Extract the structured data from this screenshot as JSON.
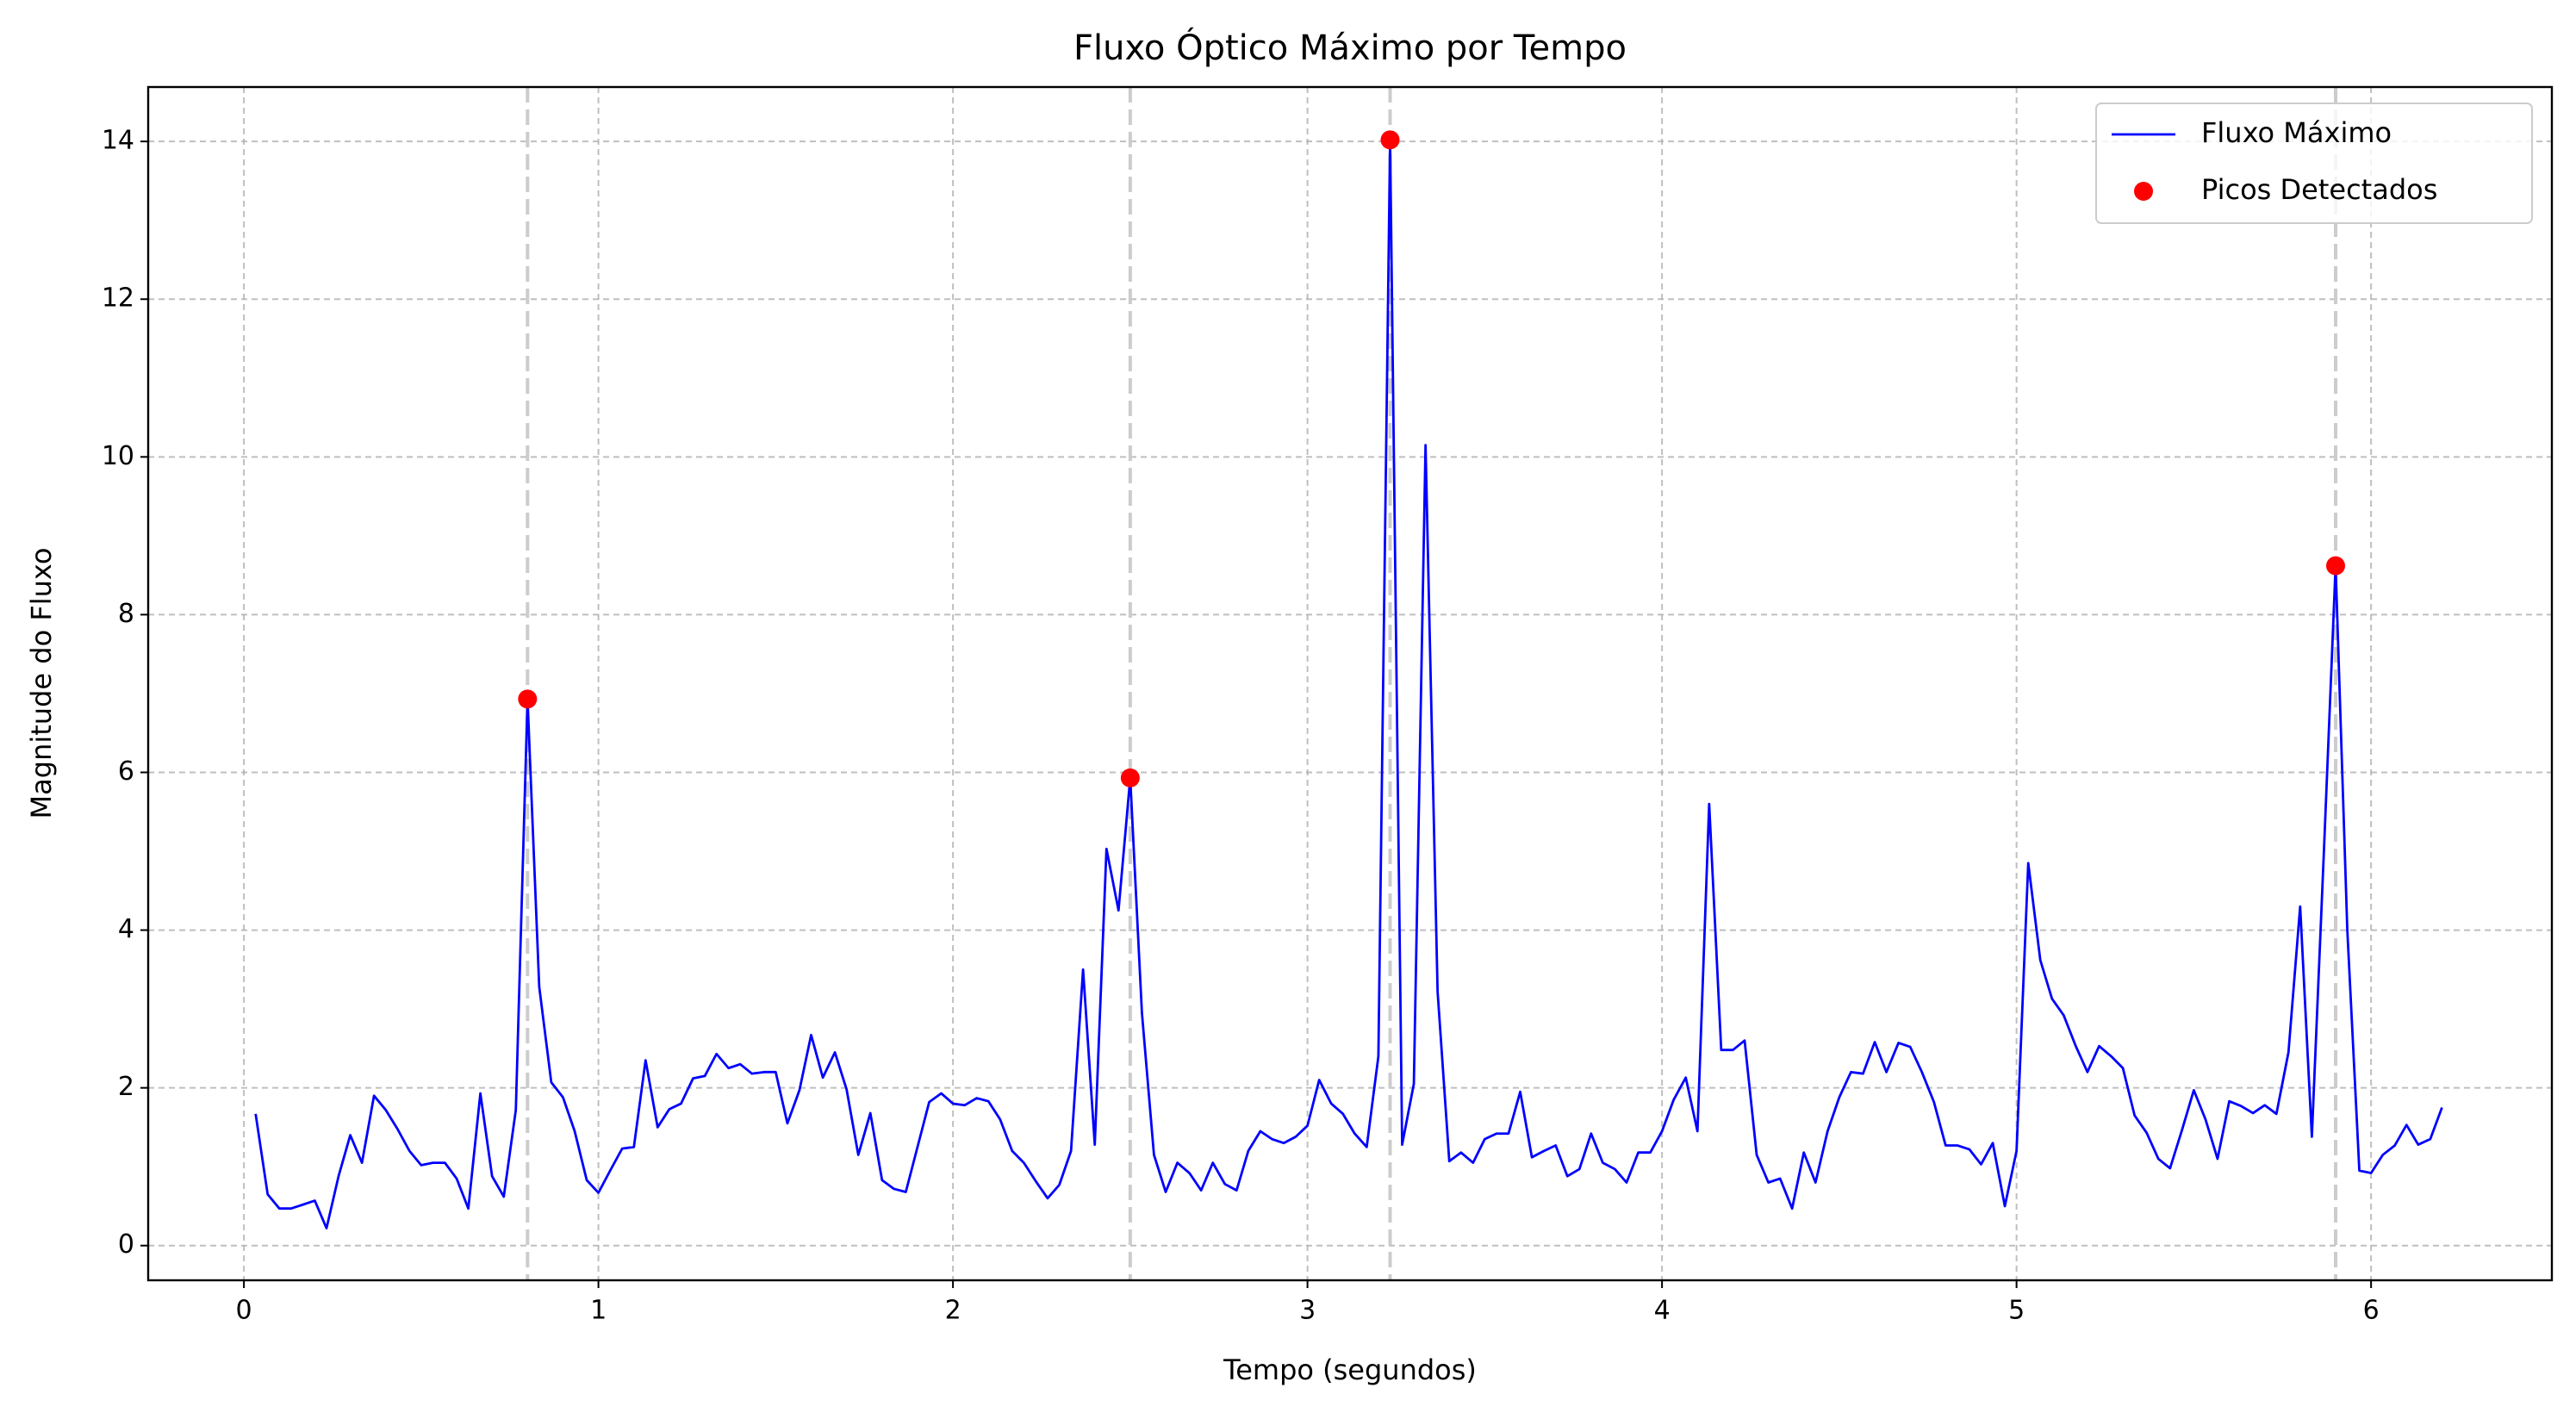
{
  "chart_data": {
    "type": "line",
    "title": "Fluxo Óptico Máximo por Tempo",
    "x_label": "Tempo (segundos)",
    "y_label": "Magnitude do Fluxo",
    "xlim": [
      -0.27,
      6.51
    ],
    "ylim": [
      -0.44,
      14.69
    ],
    "xticks": [
      0,
      1,
      2,
      3,
      4,
      5,
      6
    ],
    "yticks": [
      0,
      2,
      4,
      6,
      8,
      10,
      12,
      14
    ],
    "grid": true,
    "legend": "upper right",
    "x": [
      0.033,
      0.067,
      0.1,
      0.133,
      0.167,
      0.2,
      0.233,
      0.267,
      0.3,
      0.333,
      0.367,
      0.4,
      0.433,
      0.467,
      0.5,
      0.533,
      0.567,
      0.6,
      0.633,
      0.667,
      0.7,
      0.733,
      0.767,
      0.8,
      0.833,
      0.867,
      0.9,
      0.933,
      0.967,
      1,
      1.033,
      1.067,
      1.1,
      1.133,
      1.167,
      1.2,
      1.233,
      1.267,
      1.3,
      1.333,
      1.367,
      1.4,
      1.433,
      1.467,
      1.5,
      1.533,
      1.567,
      1.6,
      1.633,
      1.667,
      1.7,
      1.733,
      1.767,
      1.8,
      1.833,
      1.867,
      1.9,
      1.933,
      1.967,
      2,
      2.033,
      2.067,
      2.1,
      2.133,
      2.167,
      2.2,
      2.233,
      2.267,
      2.3,
      2.333,
      2.367,
      2.4,
      2.433,
      2.467,
      2.5,
      2.533,
      2.567,
      2.6,
      2.633,
      2.667,
      2.7,
      2.733,
      2.767,
      2.8,
      2.833,
      2.867,
      2.9,
      2.933,
      2.967,
      3,
      3.033,
      3.067,
      3.1,
      3.133,
      3.167,
      3.2,
      3.233,
      3.267,
      3.3,
      3.333,
      3.367,
      3.4,
      3.433,
      3.467,
      3.5,
      3.533,
      3.567,
      3.6,
      3.633,
      3.667,
      3.7,
      3.733,
      3.767,
      3.8,
      3.833,
      3.867,
      3.9,
      3.933,
      3.967,
      4,
      4.033,
      4.067,
      4.1,
      4.133,
      4.167,
      4.2,
      4.233,
      4.267,
      4.3,
      4.333,
      4.367,
      4.4,
      4.433,
      4.467,
      4.5,
      4.533,
      4.567,
      4.6,
      4.633,
      4.667,
      4.7,
      4.733,
      4.767,
      4.8,
      4.833,
      4.867,
      4.9,
      4.933,
      4.967,
      5,
      5.033,
      5.067,
      5.1,
      5.133,
      5.167,
      5.2,
      5.233,
      5.267,
      5.3,
      5.333,
      5.367,
      5.4,
      5.433,
      5.467,
      5.5,
      5.533,
      5.567,
      5.6,
      5.633,
      5.667,
      5.7,
      5.733,
      5.767,
      5.8,
      5.833,
      5.867,
      5.9,
      5.933,
      5.967,
      6,
      6.033,
      6.067,
      6.1,
      6.133,
      6.167,
      6.2
    ],
    "series": [
      {
        "name": "Fluxo Máximo",
        "color": "#0000ff",
        "values": [
          1.67,
          0.65,
          0.47,
          0.47,
          0.52,
          0.57,
          0.22,
          0.88,
          1.4,
          1.05,
          1.9,
          1.72,
          1.48,
          1.2,
          1.02,
          1.05,
          1.05,
          0.85,
          0.47,
          1.93,
          0.88,
          0.62,
          1.72,
          6.93,
          3.28,
          2.07,
          1.88,
          1.45,
          0.83,
          0.67,
          0.95,
          1.23,
          1.25,
          2.35,
          1.5,
          1.73,
          1.8,
          2.12,
          2.15,
          2.43,
          2.25,
          2.3,
          2.18,
          2.2,
          2.2,
          1.55,
          1.97,
          2.67,
          2.13,
          2.45,
          1.98,
          1.15,
          1.68,
          0.83,
          0.72,
          0.68,
          1.25,
          1.82,
          1.93,
          1.8,
          1.78,
          1.87,
          1.83,
          1.6,
          1.2,
          1.05,
          0.82,
          0.6,
          0.77,
          1.2,
          3.5,
          1.28,
          5.03,
          4.25,
          5.93,
          2.95,
          1.15,
          0.68,
          1.05,
          0.92,
          0.7,
          1.05,
          0.78,
          0.7,
          1.2,
          1.45,
          1.35,
          1.3,
          1.38,
          1.52,
          2.1,
          1.8,
          1.67,
          1.42,
          1.25,
          2.4,
          14.02,
          1.28,
          2.05,
          10.15,
          3.22,
          1.07,
          1.18,
          1.05,
          1.35,
          1.42,
          1.42,
          1.95,
          1.12,
          1.2,
          1.27,
          0.88,
          0.97,
          1.42,
          1.05,
          0.97,
          0.8,
          1.18,
          1.18,
          1.45,
          1.85,
          2.13,
          1.45,
          5.6,
          2.48,
          2.48,
          2.6,
          1.15,
          0.8,
          0.85,
          0.47,
          1.18,
          0.8,
          1.45,
          1.88,
          2.2,
          2.18,
          2.58,
          2.2,
          2.57,
          2.52,
          2.2,
          1.82,
          1.27,
          1.27,
          1.22,
          1.03,
          1.3,
          0.5,
          1.2,
          4.85,
          3.62,
          3.13,
          2.92,
          2.53,
          2.2,
          2.53,
          2.4,
          2.25,
          1.65,
          1.43,
          1.1,
          0.98,
          1.47,
          1.97,
          1.6,
          1.1,
          1.83,
          1.77,
          1.68,
          1.78,
          1.67,
          2.45,
          4.3,
          1.38,
          5.0,
          8.62,
          4.0,
          0.95,
          0.92,
          1.15,
          1.27,
          1.53,
          1.28,
          1.35,
          1.75
        ]
      },
      {
        "name": "Picos Detectados",
        "color": "#ff0000",
        "marker": "o",
        "x": [
          0.8,
          2.5,
          3.233,
          5.9
        ],
        "values": [
          6.93,
          5.93,
          14.02,
          8.62
        ]
      }
    ],
    "peak_lines_color": "#cccccc"
  }
}
